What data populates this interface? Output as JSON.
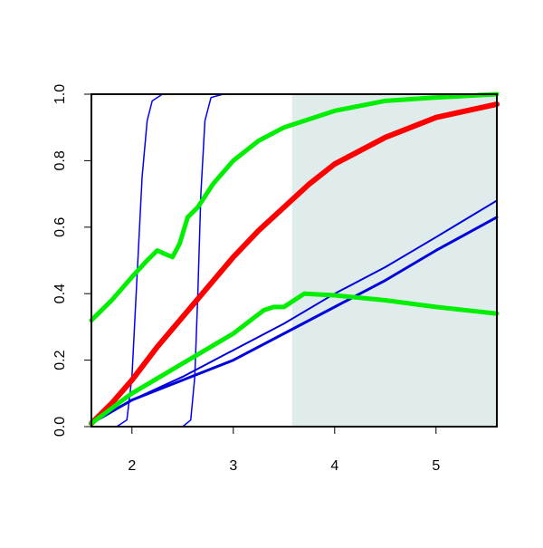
{
  "chart_data": {
    "type": "line",
    "xlim": [
      1.6,
      5.6
    ],
    "ylim": [
      0,
      1
    ],
    "xticks": [
      2,
      3,
      4,
      5
    ],
    "yticks": [
      {
        "value": 0,
        "label": "0.0"
      },
      0.2,
      0.4,
      0.6,
      0.8,
      {
        "value": 1,
        "label": "1.0"
      }
    ],
    "shade": {
      "xlim": [
        3.58,
        5.6
      ],
      "color": "#e0ecec"
    },
    "series": [
      {
        "color": "#0000ff",
        "line_width": 1.5,
        "x": [
          1.6,
          1.85,
          1.95,
          2.0,
          2.05,
          2.1,
          2.15,
          2.2,
          2.3,
          2.5,
          5.6
        ],
        "values": [
          0,
          0,
          0.02,
          0.15,
          0.45,
          0.75,
          0.92,
          0.98,
          1,
          1,
          1
        ]
      },
      {
        "color": "#0000ff",
        "line_width": 1.5,
        "x": [
          1.6,
          2.5,
          2.58,
          2.62,
          2.65,
          2.68,
          2.72,
          2.78,
          2.9,
          5.6
        ],
        "values": [
          0,
          0,
          0.02,
          0.15,
          0.4,
          0.7,
          0.92,
          0.99,
          1,
          1
        ]
      },
      {
        "color": "#0000dd",
        "line_width": 2,
        "x": [
          1.6,
          2,
          2.5,
          3,
          3.5,
          4,
          4.5,
          5,
          5.6
        ],
        "values": [
          0.01,
          0.08,
          0.15,
          0.23,
          0.31,
          0.4,
          0.48,
          0.57,
          0.68
        ]
      },
      {
        "color": "#0000dd",
        "line_width": 3,
        "x": [
          1.6,
          2,
          2.5,
          3,
          3.5,
          4,
          4.5,
          5,
          5.6
        ],
        "values": [
          0.01,
          0.08,
          0.14,
          0.2,
          0.28,
          0.36,
          0.44,
          0.53,
          0.63
        ]
      },
      {
        "color": "#ff0000",
        "line_width": 6,
        "x": [
          1.6,
          1.8,
          2,
          2.25,
          2.5,
          2.75,
          3,
          3.25,
          3.5,
          3.75,
          4,
          4.5,
          5,
          5.6
        ],
        "values": [
          0.01,
          0.07,
          0.14,
          0.24,
          0.33,
          0.42,
          0.51,
          0.59,
          0.66,
          0.73,
          0.79,
          0.87,
          0.93,
          0.97
        ]
      },
      {
        "color": "#00ee00",
        "line_width": 5,
        "x": [
          1.6,
          1.8,
          2,
          2.15,
          2.25,
          2.32,
          2.4,
          2.47,
          2.55,
          2.65,
          2.8,
          3,
          3.25,
          3.5,
          4,
          4.5,
          5,
          5.6
        ],
        "values": [
          0.32,
          0.38,
          0.45,
          0.5,
          0.53,
          0.52,
          0.51,
          0.55,
          0.63,
          0.66,
          0.73,
          0.8,
          0.86,
          0.9,
          0.95,
          0.98,
          0.99,
          1.0
        ]
      },
      {
        "color": "#00ee00",
        "line_width": 5,
        "x": [
          1.6,
          2,
          2.5,
          3,
          3.3,
          3.4,
          3.5,
          3.7,
          4,
          4.5,
          5,
          5.6
        ],
        "values": [
          0.01,
          0.1,
          0.19,
          0.28,
          0.35,
          0.36,
          0.36,
          0.4,
          0.395,
          0.38,
          0.36,
          0.34
        ]
      }
    ]
  }
}
